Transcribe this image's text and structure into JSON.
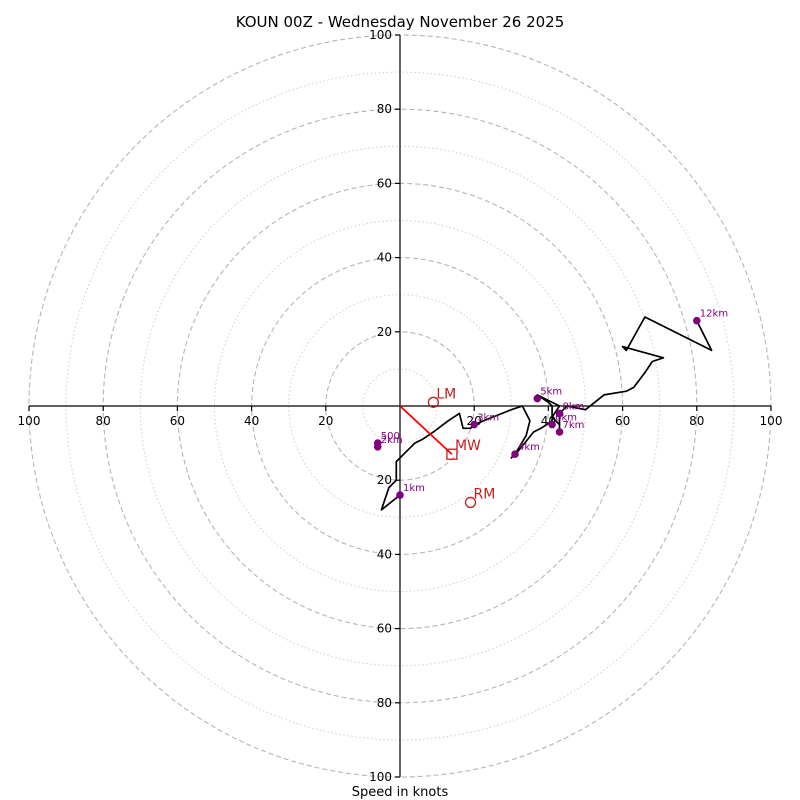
{
  "chart_data": {
    "type": "scatter",
    "subtype": "polar hodograph",
    "title": "KOUN 00Z - Wednesday November 26 2025",
    "xlabel": "Speed in knots",
    "ylabel": "",
    "xlim": [
      -100,
      100
    ],
    "ylim": [
      -100,
      100
    ],
    "tick_labels": [
      "100",
      "80",
      "60",
      "40",
      "20"
    ],
    "major_rings": [
      20,
      40,
      60,
      80,
      100
    ],
    "minor_rings": [
      10,
      30,
      50,
      70,
      90
    ],
    "grid": true,
    "trace_color": "#000000",
    "height_marker_color": "#800080",
    "motion_color": "#c42020",
    "trace": [
      {
        "u": 0,
        "v": -24
      },
      {
        "u": -5,
        "v": -28
      },
      {
        "u": -3,
        "v": -22
      },
      {
        "u": -1,
        "v": -20
      },
      {
        "u": -1,
        "v": -15
      },
      {
        "u": 1,
        "v": -13
      },
      {
        "u": 3,
        "v": -11
      },
      {
        "u": 4,
        "v": -10
      },
      {
        "u": 6,
        "v": -9
      },
      {
        "u": 9,
        "v": -7
      },
      {
        "u": 13,
        "v": -4
      },
      {
        "u": 16,
        "v": -2
      },
      {
        "u": 17,
        "v": -6
      },
      {
        "u": 19,
        "v": -6
      },
      {
        "u": 20,
        "v": -5
      },
      {
        "u": 25,
        "v": -3
      },
      {
        "u": 30,
        "v": -1
      },
      {
        "u": 33,
        "v": 0
      },
      {
        "u": 35,
        "v": -4
      },
      {
        "u": 34,
        "v": -8
      },
      {
        "u": 31,
        "v": -13
      },
      {
        "u": 30,
        "v": -14
      },
      {
        "u": 32,
        "v": -12
      },
      {
        "u": 36,
        "v": -7
      },
      {
        "u": 38,
        "v": -6
      },
      {
        "u": 41,
        "v": -4
      },
      {
        "u": 41,
        "v": 0
      },
      {
        "u": 40,
        "v": 1
      },
      {
        "u": 37,
        "v": 3
      },
      {
        "u": 39,
        "v": 2
      },
      {
        "u": 43,
        "v": 0
      },
      {
        "u": 41,
        "v": -3
      },
      {
        "u": 43,
        "v": -5
      },
      {
        "u": 43,
        "v": -7
      },
      {
        "u": 43,
        "v": -2
      },
      {
        "u": 45,
        "v": 0
      },
      {
        "u": 50,
        "v": -1
      },
      {
        "u": 55,
        "v": 3
      },
      {
        "u": 61,
        "v": 4
      },
      {
        "u": 63,
        "v": 5
      },
      {
        "u": 66,
        "v": 9
      },
      {
        "u": 68,
        "v": 12
      },
      {
        "u": 71,
        "v": 13
      },
      {
        "u": 60,
        "v": 16
      },
      {
        "u": 61,
        "v": 15
      },
      {
        "u": 66,
        "v": 24
      },
      {
        "u": 84,
        "v": 15
      },
      {
        "u": 80,
        "v": 23
      }
    ],
    "height_markers": [
      {
        "label": "1km",
        "u": 0,
        "v": -24
      },
      {
        "label": "500",
        "u": -6,
        "v": -10
      },
      {
        "label": "2km",
        "u": -6,
        "v": -11
      },
      {
        "label": "3km",
        "u": 20,
        "v": -5
      },
      {
        "label": "4km",
        "u": 31,
        "v": -13
      },
      {
        "label": "5km",
        "u": 37,
        "v": 2
      },
      {
        "label": "6km",
        "u": 41,
        "v": -5
      },
      {
        "label": "8km",
        "u": 43,
        "v": -2
      },
      {
        "label": "7km",
        "u": 43,
        "v": -7
      },
      {
        "label": "12km",
        "u": 80,
        "v": 23
      }
    ],
    "storm_motions": [
      {
        "label": "LM",
        "u": 9,
        "v": 1,
        "marker": "circle"
      },
      {
        "label": "MW",
        "u": 14,
        "v": -13,
        "marker": "square"
      },
      {
        "label": "RM",
        "u": 19,
        "v": -26,
        "marker": "circle"
      }
    ],
    "shear_vector": {
      "from_u": 0,
      "from_v": 0,
      "to_u": 14,
      "to_v": -13
    }
  }
}
